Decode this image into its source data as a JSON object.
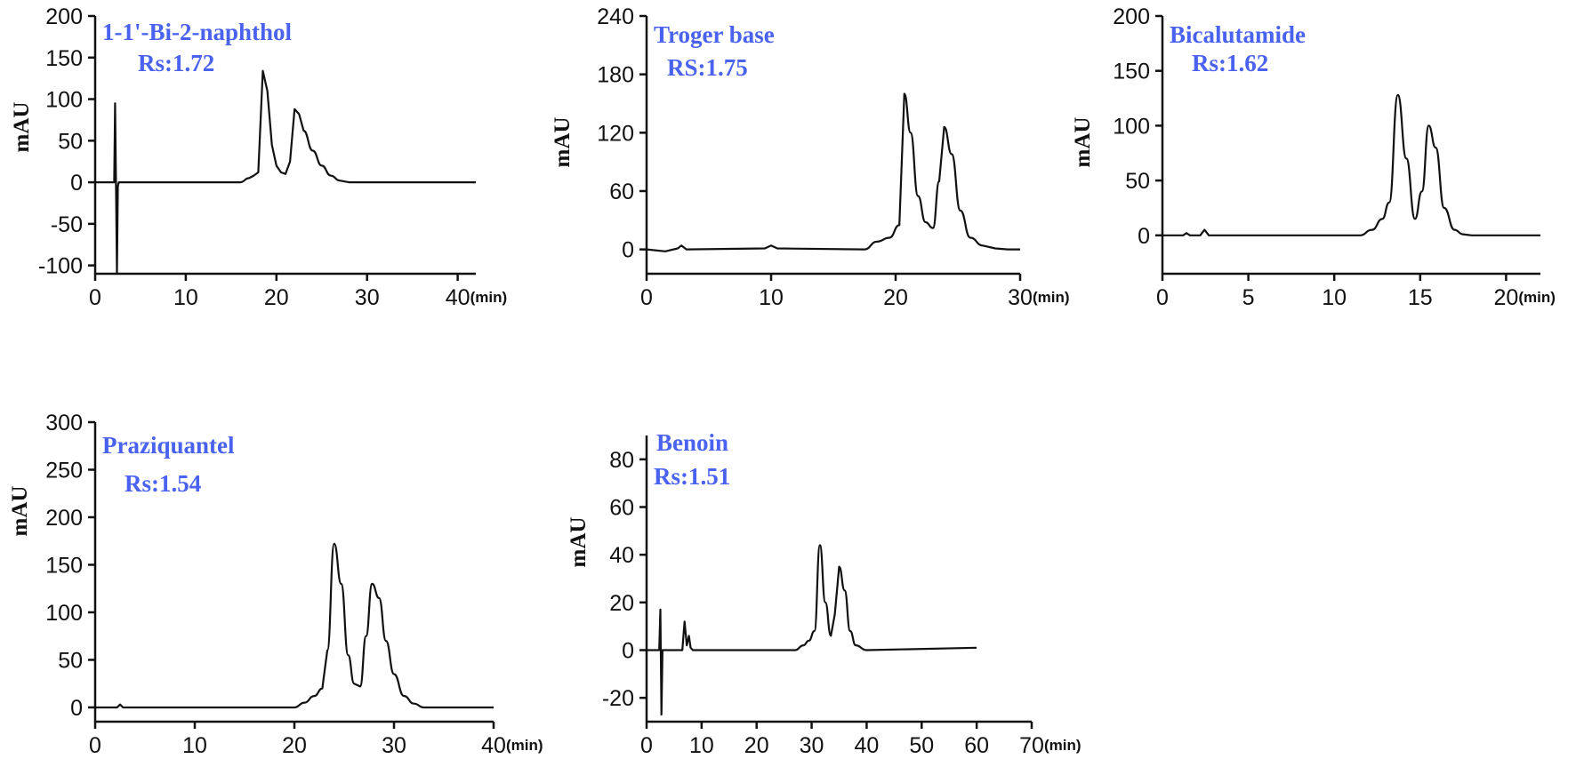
{
  "chart_data": [
    {
      "type": "line",
      "title": "1-1'-Bi-2-naphthol",
      "subtitle": "Rs:1.72",
      "ylabel": "mAU",
      "xunit": "(min)",
      "xlim": [
        0,
        42
      ],
      "ylim": [
        -110,
        200
      ],
      "xticks": [
        "0",
        "10",
        "20",
        "30",
        "40"
      ],
      "xtick_values": [
        0,
        10,
        20,
        30,
        40
      ],
      "yticks": [
        "-100",
        "-50",
        "0",
        "50",
        "100",
        "150",
        "200"
      ],
      "ytick_values": [
        -100,
        -50,
        0,
        50,
        100,
        150,
        200
      ],
      "x": [
        0,
        2.1,
        2.2,
        2.3,
        2.4,
        2.5,
        2.6,
        16,
        17,
        17.5,
        18,
        18.5,
        19,
        19.5,
        20,
        20.5,
        21,
        21.5,
        22,
        22.5,
        23,
        24,
        25,
        26,
        27,
        28,
        42
      ],
      "y": [
        0,
        0,
        95,
        0,
        -110,
        -5,
        0,
        0,
        5,
        8,
        12,
        134,
        110,
        45,
        20,
        12,
        10,
        25,
        88,
        82,
        62,
        38,
        20,
        8,
        2,
        0,
        0
      ]
    },
    {
      "type": "line",
      "title": "Troger base",
      "subtitle": "RS:1.75",
      "ylabel": "mAU",
      "xunit": "(min)",
      "xlim": [
        0,
        30
      ],
      "ylim": [
        -25,
        240
      ],
      "xticks": [
        "0",
        "10",
        "20",
        "30"
      ],
      "xtick_values": [
        0,
        10,
        20,
        30
      ],
      "yticks": [
        "0",
        "60",
        "120",
        "180",
        "240"
      ],
      "ytick_values": [
        0,
        60,
        120,
        180,
        240
      ],
      "x": [
        0,
        1.5,
        2.5,
        2.8,
        3.2,
        9.5,
        10,
        10.5,
        17.5,
        18.5,
        19.5,
        20.3,
        20.7,
        21.2,
        21.8,
        22.4,
        23,
        23.5,
        23.9,
        24.5,
        25.2,
        26,
        27,
        28,
        29,
        30
      ],
      "y": [
        0,
        -2,
        1,
        4,
        0,
        1,
        4,
        1,
        0,
        8,
        12,
        25,
        160,
        120,
        55,
        28,
        22,
        70,
        126,
        98,
        40,
        12,
        4,
        1,
        0,
        0
      ]
    },
    {
      "type": "line",
      "title": "Bicalutamide",
      "subtitle": "Rs:1.62",
      "ylabel": "mAU",
      "xunit": "(min)",
      "xlim": [
        0,
        22
      ],
      "ylim": [
        -35,
        200
      ],
      "xticks": [
        "0",
        "5",
        "10",
        "15",
        "20"
      ],
      "xtick_values": [
        0,
        5,
        10,
        15,
        20
      ],
      "yticks": [
        "0",
        "50",
        "100",
        "150",
        "200"
      ],
      "ytick_values": [
        0,
        50,
        100,
        150,
        200
      ],
      "x": [
        0,
        1.2,
        1.4,
        1.6,
        2.2,
        2.45,
        2.7,
        11.5,
        12.2,
        12.8,
        13.2,
        13.7,
        14.2,
        14.7,
        15.1,
        15.5,
        15.9,
        16.4,
        17,
        17.5,
        18,
        22
      ],
      "y": [
        0,
        0,
        2,
        0,
        0,
        5,
        0,
        0,
        5,
        15,
        30,
        128,
        70,
        15,
        40,
        100,
        80,
        25,
        5,
        1,
        0,
        0
      ]
    },
    {
      "type": "line",
      "title": "Praziquantel",
      "subtitle": "Rs:1.54",
      "ylabel": "mAU",
      "xunit": "(min)",
      "xlim": [
        0,
        40
      ],
      "ylim": [
        -15,
        300
      ],
      "xticks": [
        "0",
        "10",
        "20",
        "30",
        "40"
      ],
      "xtick_values": [
        0,
        10,
        20,
        30,
        40
      ],
      "yticks": [
        "0",
        "50",
        "100",
        "150",
        "200",
        "250",
        "300"
      ],
      "ytick_values": [
        0,
        50,
        100,
        150,
        200,
        250,
        300
      ],
      "x": [
        0,
        2.2,
        2.5,
        2.8,
        20,
        21,
        22,
        22.8,
        23.3,
        24,
        24.7,
        25.4,
        26,
        26.6,
        27.2,
        27.8,
        28.5,
        29.2,
        30,
        31,
        32,
        33,
        40
      ],
      "y": [
        0,
        0,
        3,
        0,
        0,
        5,
        12,
        20,
        60,
        172,
        130,
        55,
        25,
        22,
        75,
        130,
        115,
        70,
        35,
        12,
        4,
        0,
        0
      ]
    },
    {
      "type": "line",
      "title": "Benoin",
      "subtitle": "Rs:1.51",
      "ylabel": "mAU",
      "xunit": "(min)",
      "xlim": [
        0,
        70
      ],
      "ylim": [
        -30,
        90
      ],
      "xticks": [
        "0",
        "10",
        "20",
        "30",
        "40",
        "50",
        "60",
        "70"
      ],
      "xtick_values": [
        0,
        10,
        20,
        30,
        40,
        50,
        60,
        70
      ],
      "yticks": [
        "-20",
        "0",
        "20",
        "40",
        "60",
        "80"
      ],
      "ytick_values": [
        -20,
        0,
        20,
        40,
        60,
        80
      ],
      "x": [
        0,
        2.3,
        2.5,
        2.7,
        2.9,
        3.2,
        6.5,
        6.9,
        7.3,
        7.7,
        8,
        8.4,
        9,
        27,
        28.5,
        29.5,
        30.5,
        31.5,
        32.5,
        33.5,
        34.2,
        35,
        36,
        37,
        38,
        40,
        60
      ],
      "y": [
        0,
        0,
        17,
        -27,
        0,
        0,
        0,
        12,
        2,
        6,
        1,
        0,
        0,
        0,
        2,
        4,
        8,
        44,
        20,
        6,
        15,
        35,
        25,
        8,
        2,
        0,
        1
      ]
    }
  ]
}
